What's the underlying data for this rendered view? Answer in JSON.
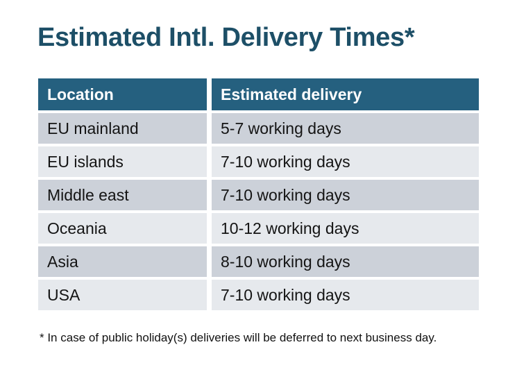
{
  "page": {
    "title": "Estimated Intl. Delivery Times*",
    "footnote": "* In case of public holiday(s) deliveries will be deferred to next business day."
  },
  "table": {
    "columns": [
      "Location",
      "Estimated delivery"
    ],
    "rows": [
      {
        "location": "EU mainland",
        "delivery": "5-7 working days"
      },
      {
        "location": "EU islands",
        "delivery": "7-10 working days"
      },
      {
        "location": "Middle east",
        "delivery": "7-10 working days"
      },
      {
        "location": "Oceania",
        "delivery": "10-12 working days"
      },
      {
        "location": "Asia",
        "delivery": "8-10 working days"
      },
      {
        "location": "USA",
        "delivery": "7-10 working days"
      }
    ]
  },
  "colors": {
    "title": "#1d4f67",
    "header_bg": "#25607f",
    "header_text": "#ffffff",
    "row_dark": "#ccd1d9",
    "row_light": "#e6e9ed",
    "cell_text": "#141414"
  }
}
